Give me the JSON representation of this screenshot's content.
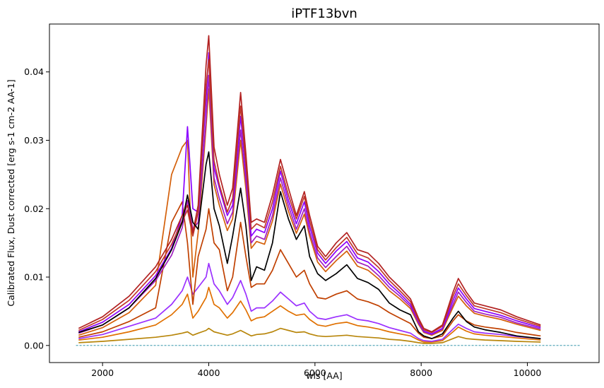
{
  "chart_data": {
    "type": "line",
    "title": "iPTF13bvn",
    "xlabel": "wls [AA]",
    "ylabel": "Calibrated Flux, Dust corrected [erg s-1 cm-2 AA-1]",
    "xlim": [
      1000,
      11350
    ],
    "ylim": [
      -0.0025,
      0.047
    ],
    "xticks": [
      2000,
      4000,
      6000,
      8000,
      10000
    ],
    "yticks": [
      0.0,
      0.01,
      0.02,
      0.03,
      0.04
    ],
    "ytick_labels": [
      "0.00",
      "0.01",
      "0.02",
      "0.03",
      "0.04"
    ],
    "grid": false,
    "zero_line": {
      "x": [
        1500,
        11000
      ],
      "y": 0,
      "color": "#17869e",
      "style": "dashed"
    },
    "x": [
      1550,
      2000,
      2500,
      3000,
      3300,
      3500,
      3600,
      3700,
      3800,
      3950,
      4000,
      4100,
      4200,
      4350,
      4450,
      4600,
      4700,
      4800,
      4900,
      5050,
      5200,
      5350,
      5500,
      5650,
      5800,
      5900,
      6050,
      6200,
      6400,
      6600,
      6800,
      7000,
      7200,
      7400,
      7600,
      7800,
      7950,
      8050,
      8200,
      8400,
      8600,
      8700,
      8850,
      9000,
      9200,
      9500,
      9800,
      10250
    ],
    "series": [
      {
        "color": "#000000",
        "values": [
          0.0019,
          0.003,
          0.0055,
          0.0098,
          0.014,
          0.018,
          0.022,
          0.018,
          0.017,
          0.0265,
          0.0283,
          0.02,
          0.0175,
          0.012,
          0.016,
          0.023,
          0.0175,
          0.0095,
          0.0115,
          0.011,
          0.015,
          0.0225,
          0.0185,
          0.0155,
          0.0175,
          0.013,
          0.0105,
          0.0095,
          0.0105,
          0.0118,
          0.0098,
          0.0092,
          0.0082,
          0.0062,
          0.0052,
          0.0045,
          0.002,
          0.0014,
          0.001,
          0.0017,
          0.004,
          0.005,
          0.0035,
          0.0027,
          0.0023,
          0.0019,
          0.0014,
          0.001
        ]
      },
      {
        "color": "#b22222",
        "values": [
          0.0025,
          0.0042,
          0.0072,
          0.0115,
          0.0155,
          0.019,
          0.0205,
          0.0165,
          0.0205,
          0.041,
          0.0453,
          0.029,
          0.025,
          0.0205,
          0.023,
          0.037,
          0.028,
          0.018,
          0.0185,
          0.018,
          0.022,
          0.0272,
          0.023,
          0.019,
          0.0225,
          0.019,
          0.0145,
          0.013,
          0.015,
          0.0165,
          0.014,
          0.0135,
          0.012,
          0.01,
          0.0085,
          0.0068,
          0.004,
          0.0025,
          0.002,
          0.003,
          0.0078,
          0.0098,
          0.0078,
          0.0062,
          0.0058,
          0.0052,
          0.0042,
          0.003
        ]
      },
      {
        "color": "#c0392b",
        "values": [
          0.0022,
          0.0038,
          0.0066,
          0.0108,
          0.0148,
          0.0182,
          0.0198,
          0.016,
          0.0195,
          0.038,
          0.0418,
          0.027,
          0.0235,
          0.0195,
          0.0215,
          0.035,
          0.0265,
          0.017,
          0.0178,
          0.0172,
          0.021,
          0.0262,
          0.022,
          0.0185,
          0.0218,
          0.0182,
          0.014,
          0.0125,
          0.0143,
          0.0158,
          0.0134,
          0.0128,
          0.0114,
          0.0095,
          0.008,
          0.0064,
          0.0037,
          0.0023,
          0.0019,
          0.0028,
          0.0072,
          0.009,
          0.0073,
          0.0058,
          0.0054,
          0.0048,
          0.0039,
          0.0028
        ]
      },
      {
        "color": "#8b00ff",
        "values": [
          0.002,
          0.0034,
          0.006,
          0.0102,
          0.0142,
          0.019,
          0.032,
          0.02,
          0.0195,
          0.036,
          0.0428,
          0.026,
          0.023,
          0.019,
          0.0205,
          0.0335,
          0.0255,
          0.016,
          0.017,
          0.0165,
          0.02,
          0.0255,
          0.0212,
          0.0178,
          0.021,
          0.0174,
          0.0135,
          0.012,
          0.0138,
          0.0152,
          0.0128,
          0.0122,
          0.0108,
          0.009,
          0.0076,
          0.006,
          0.0035,
          0.0021,
          0.0017,
          0.0025,
          0.0066,
          0.0084,
          0.0068,
          0.0054,
          0.005,
          0.0044,
          0.0036,
          0.0026
        ]
      },
      {
        "color": "#a020c0",
        "values": [
          0.0018,
          0.003,
          0.0055,
          0.0095,
          0.0132,
          0.0172,
          0.0212,
          0.017,
          0.018,
          0.033,
          0.0395,
          0.0245,
          0.0215,
          0.0178,
          0.0195,
          0.0315,
          0.024,
          0.015,
          0.016,
          0.0155,
          0.019,
          0.0245,
          0.0204,
          0.017,
          0.02,
          0.0166,
          0.0128,
          0.0114,
          0.013,
          0.0145,
          0.0122,
          0.0116,
          0.0102,
          0.0085,
          0.0072,
          0.0057,
          0.0033,
          0.002,
          0.0016,
          0.0024,
          0.006,
          0.0078,
          0.0063,
          0.005,
          0.0046,
          0.0041,
          0.0033,
          0.0024
        ]
      },
      {
        "color": "#d4600a",
        "values": [
          0.0015,
          0.0026,
          0.0048,
          0.0088,
          0.025,
          0.029,
          0.03,
          0.01,
          0.0165,
          0.032,
          0.0375,
          0.0235,
          0.0205,
          0.0168,
          0.0185,
          0.03,
          0.0228,
          0.0142,
          0.0152,
          0.0148,
          0.0182,
          0.0236,
          0.0196,
          0.0164,
          0.0192,
          0.016,
          0.0122,
          0.0108,
          0.0124,
          0.0138,
          0.0116,
          0.011,
          0.0097,
          0.008,
          0.0068,
          0.0054,
          0.0031,
          0.0019,
          0.0015,
          0.0022,
          0.0056,
          0.0072,
          0.0058,
          0.0047,
          0.0043,
          0.0038,
          0.0031,
          0.0022
        ]
      },
      {
        "color": "#c04000",
        "values": [
          0.0012,
          0.002,
          0.0035,
          0.0055,
          0.018,
          0.021,
          0.015,
          0.006,
          0.013,
          0.017,
          0.02,
          0.015,
          0.014,
          0.008,
          0.01,
          0.018,
          0.013,
          0.0085,
          0.009,
          0.009,
          0.011,
          0.014,
          0.012,
          0.01,
          0.011,
          0.009,
          0.007,
          0.0068,
          0.0075,
          0.008,
          0.0068,
          0.0064,
          0.0058,
          0.0048,
          0.004,
          0.0032,
          0.0018,
          0.0012,
          0.001,
          0.0014,
          0.0036,
          0.0045,
          0.0036,
          0.003,
          0.0027,
          0.0024,
          0.0019,
          0.0014
        ]
      },
      {
        "color": "#9b30ff",
        "values": [
          0.001,
          0.0016,
          0.0028,
          0.004,
          0.006,
          0.008,
          0.01,
          0.0075,
          0.0085,
          0.01,
          0.012,
          0.009,
          0.008,
          0.006,
          0.007,
          0.0095,
          0.0075,
          0.005,
          0.0055,
          0.0055,
          0.0065,
          0.0078,
          0.0068,
          0.0058,
          0.0062,
          0.005,
          0.004,
          0.0038,
          0.0042,
          0.0045,
          0.0038,
          0.0036,
          0.0032,
          0.0026,
          0.0022,
          0.0018,
          0.001,
          0.0007,
          0.0006,
          0.0009,
          0.0024,
          0.0031,
          0.0025,
          0.002,
          0.0018,
          0.0016,
          0.0013,
          0.001
        ]
      },
      {
        "color": "#e07000",
        "values": [
          0.0008,
          0.0012,
          0.002,
          0.003,
          0.0045,
          0.006,
          0.0075,
          0.004,
          0.005,
          0.007,
          0.0085,
          0.006,
          0.0055,
          0.004,
          0.0048,
          0.0065,
          0.0052,
          0.0036,
          0.004,
          0.0042,
          0.005,
          0.0058,
          0.005,
          0.0044,
          0.0046,
          0.0038,
          0.003,
          0.0028,
          0.0032,
          0.0034,
          0.0029,
          0.0027,
          0.0024,
          0.002,
          0.0017,
          0.0014,
          0.0008,
          0.0005,
          0.0005,
          0.0007,
          0.002,
          0.0027,
          0.0021,
          0.0017,
          0.0015,
          0.0013,
          0.0011,
          0.0008
        ]
      },
      {
        "color": "#b8860b",
        "values": [
          0.0004,
          0.0006,
          0.0009,
          0.0012,
          0.0015,
          0.0018,
          0.002,
          0.0015,
          0.0018,
          0.0022,
          0.0025,
          0.002,
          0.0018,
          0.0015,
          0.0017,
          0.0022,
          0.0018,
          0.0014,
          0.0016,
          0.0017,
          0.002,
          0.0025,
          0.0022,
          0.0019,
          0.002,
          0.0017,
          0.0014,
          0.0013,
          0.0014,
          0.0015,
          0.0013,
          0.0012,
          0.0011,
          0.0009,
          0.0008,
          0.0006,
          0.0004,
          0.0003,
          0.0003,
          0.0004,
          0.001,
          0.0013,
          0.001,
          0.0009,
          0.0008,
          0.0007,
          0.0006,
          0.0005
        ]
      }
    ]
  }
}
